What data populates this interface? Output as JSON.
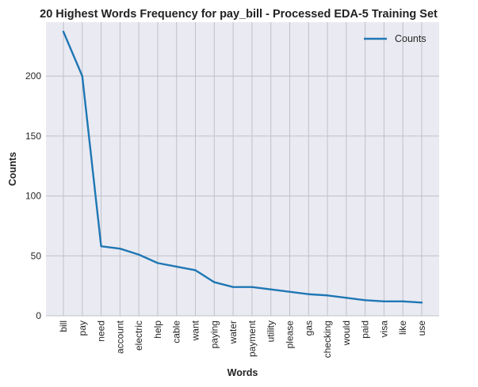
{
  "chart_data": {
    "type": "line",
    "title": "20 Highest Words Frequency for pay_bill - Processed EDA-5 Training Set",
    "xlabel": "Words",
    "ylabel": "Counts",
    "categories": [
      "bill",
      "pay",
      "need",
      "account",
      "electric",
      "help",
      "cable",
      "want",
      "paying",
      "water",
      "payment",
      "utility",
      "please",
      "gas",
      "checking",
      "would",
      "paid",
      "visa",
      "like",
      "use"
    ],
    "series": [
      {
        "name": "Counts",
        "values": [
          237,
          200,
          58,
          56,
          51,
          44,
          41,
          38,
          28,
          24,
          24,
          22,
          20,
          18,
          17,
          15,
          13,
          12,
          12,
          11
        ]
      }
    ],
    "ylim": [
      0,
      245
    ],
    "yticks": [
      0,
      50,
      100,
      150,
      200
    ],
    "grid": true,
    "legend_position": "top-right",
    "colors": {
      "line": "#1f77b4",
      "plot_background": "#eaeaf2",
      "grid": "#c0c0c8"
    }
  }
}
